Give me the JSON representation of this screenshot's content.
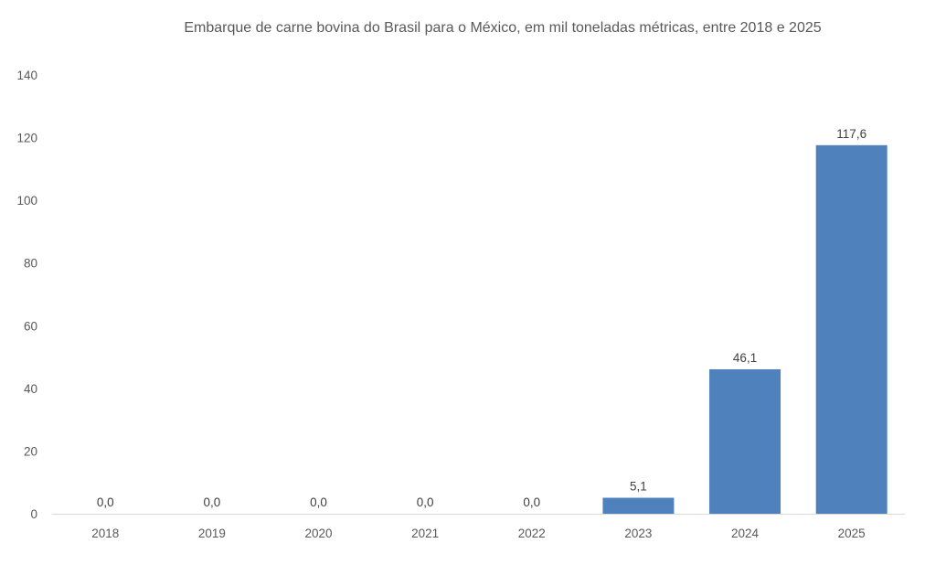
{
  "chart_data": {
    "type": "bar",
    "title": "Embarque de carne bovina do Brasil para o México, em mil toneladas métricas, entre 2018 e 2025",
    "categories": [
      "2018",
      "2019",
      "2020",
      "2021",
      "2022",
      "2023",
      "2024",
      "2025"
    ],
    "values": [
      0.0,
      0.0,
      0.0,
      0.0,
      0.0,
      5.1,
      46.1,
      117.6
    ],
    "data_labels": [
      "0,0",
      "0,0",
      "0,0",
      "0,0",
      "0,0",
      "5,1",
      "46,1",
      "117,6"
    ],
    "xlabel": "",
    "ylabel": "",
    "ylim": [
      0,
      140
    ],
    "yticks": [
      "0",
      "20",
      "40",
      "60",
      "80",
      "100",
      "120",
      "140"
    ],
    "grid": false,
    "legend": "none",
    "bar_color": "#4f81bd"
  }
}
